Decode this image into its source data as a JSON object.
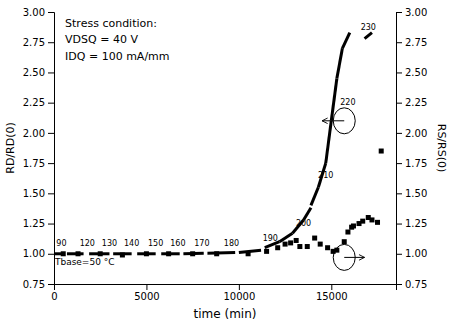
{
  "chart_data": {
    "type": "line",
    "xlabel": "time (min)",
    "ylabel": "RD/RD(0)",
    "y2label": "RS/RS(0)",
    "xlim": [
      0,
      18500
    ],
    "ylim": [
      0.75,
      3.0
    ],
    "y2lim": [
      0.75,
      3.0
    ],
    "xticks": [
      0,
      5000,
      10000,
      15000
    ],
    "yticks": [
      0.75,
      {
        "value": 1.0,
        "label": "1.00"
      },
      1.25,
      {
        "value": 1.5,
        "label": "1.50"
      },
      1.75,
      {
        "value": 2.0,
        "label": "2.00"
      },
      2.25,
      {
        "value": 2.5,
        "label": "2.50"
      },
      2.75,
      {
        "value": 3.0,
        "label": "3.00"
      }
    ],
    "y2ticks": [
      0.75,
      {
        "value": 1.0,
        "label": "1.00"
      },
      1.25,
      {
        "value": 1.5,
        "label": "1.50"
      },
      1.75,
      {
        "value": 2.0,
        "label": "2.00"
      },
      2.25,
      {
        "value": 2.5,
        "label": "2.50"
      },
      2.75,
      {
        "value": 3.0,
        "label": "3.00"
      }
    ],
    "grid": false,
    "series": [
      {
        "type": "line",
        "color": "#000000",
        "x": [
          0,
          450
        ],
        "values": [
          1.0,
          1.0
        ]
      },
      {
        "type": "line",
        "color": "#000000",
        "x": [
          700,
          1600
        ],
        "values": [
          1.0,
          1.0
        ]
      },
      {
        "type": "line",
        "color": "#000000",
        "x": [
          1900,
          3000
        ],
        "values": [
          1.0,
          1.0
        ]
      },
      {
        "type": "line",
        "color": "#000000",
        "x": [
          3200,
          4200
        ],
        "values": [
          1.0,
          1.0
        ]
      },
      {
        "type": "line",
        "color": "#000000",
        "x": [
          4500,
          5500
        ],
        "values": [
          1.0,
          1.0
        ]
      },
      {
        "type": "line",
        "color": "#000000",
        "x": [
          5800,
          6800
        ],
        "values": [
          1.0,
          1.0
        ]
      },
      {
        "type": "line",
        "color": "#000000",
        "x": [
          7000,
          8100
        ],
        "values": [
          1.0,
          1.005
        ]
      },
      {
        "type": "line",
        "color": "#000000",
        "x": [
          8300,
          9800
        ],
        "values": [
          1.005,
          1.01
        ]
      },
      {
        "type": "line",
        "color": "#000000",
        "x": [
          10000,
          11200
        ],
        "values": [
          1.01,
          1.03
        ]
      },
      {
        "type": "line",
        "color": "#000000",
        "x": [
          11400,
          12200
        ],
        "values": [
          1.05,
          1.1
        ]
      },
      {
        "type": "line",
        "color": "#000000",
        "x": [
          12200,
          12900
        ],
        "values": [
          1.1,
          1.17
        ]
      },
      {
        "type": "line",
        "color": "#000000",
        "x": [
          12900,
          13500
        ],
        "values": [
          1.17,
          1.28
        ]
      },
      {
        "type": "line",
        "color": "#000000",
        "x": [
          13500,
          13900
        ],
        "values": [
          1.28,
          1.38
        ]
      },
      {
        "type": "line",
        "color": "#000000",
        "x": [
          13900,
          14300
        ],
        "values": [
          1.4,
          1.55
        ]
      },
      {
        "type": "line",
        "color": "#000000",
        "x": [
          14300,
          14700
        ],
        "values": [
          1.55,
          1.75
        ]
      },
      {
        "type": "line",
        "color": "#000000",
        "x": [
          14700,
          15000
        ],
        "values": [
          1.75,
          2.1
        ]
      },
      {
        "type": "line",
        "color": "#000000",
        "x": [
          15000,
          15300
        ],
        "values": [
          2.1,
          2.45
        ]
      },
      {
        "type": "line",
        "color": "#000000",
        "x": [
          15300,
          15600
        ],
        "values": [
          2.45,
          2.7
        ]
      },
      {
        "type": "line",
        "color": "#000000",
        "x": [
          15600,
          16000
        ],
        "values": [
          2.7,
          2.83
        ]
      },
      {
        "type": "line",
        "color": "#000000",
        "x": [
          16800,
          17200
        ],
        "values": [
          2.78,
          2.83
        ]
      },
      {
        "type": "scatter",
        "axis": "y2",
        "color": "#000000",
        "marker": "square",
        "x": [
          500,
          1300,
          2500,
          3700,
          5000,
          6200,
          7500,
          8800,
          10500,
          11500,
          12100,
          12500,
          12800,
          13100,
          13300,
          13700,
          14100,
          14400,
          14800,
          15100,
          15300,
          15700,
          15900,
          16100,
          16200,
          16500,
          16700,
          17000,
          17200,
          17500,
          17700
        ],
        "values": [
          1.0,
          1.0,
          1.0,
          0.99,
          1.0,
          1.0,
          1.0,
          1.0,
          1.0,
          1.02,
          1.05,
          1.08,
          1.09,
          1.11,
          1.06,
          1.06,
          1.13,
          1.08,
          1.05,
          1.02,
          1.03,
          1.1,
          1.18,
          1.22,
          1.23,
          1.25,
          1.27,
          1.3,
          1.28,
          1.26,
          1.85
        ]
      }
    ],
    "annotations": [
      {
        "text": "90",
        "x": 400,
        "y": 1.055
      },
      {
        "text": "120",
        "x": 1800,
        "y": 1.055
      },
      {
        "text": "130",
        "x": 3000,
        "y": 1.055
      },
      {
        "text": "140",
        "x": 4200,
        "y": 1.055
      },
      {
        "text": "150",
        "x": 5500,
        "y": 1.055
      },
      {
        "text": "160",
        "x": 6700,
        "y": 1.055
      },
      {
        "text": "170",
        "x": 8000,
        "y": 1.055
      },
      {
        "text": "180",
        "x": 9600,
        "y": 1.06
      },
      {
        "text": "190",
        "x": 11700,
        "y": 1.1
      },
      {
        "text": "200",
        "x": 13500,
        "y": 1.22
      },
      {
        "text": "210",
        "x": 14700,
        "y": 1.62
      },
      {
        "text": "220",
        "x": 15900,
        "y": 2.22
      },
      {
        "text": "230",
        "x": 17000,
        "y": 2.84
      },
      {
        "text": "Tbase=50 °C",
        "x": 50,
        "y": 0.965,
        "align": "left"
      },
      {
        "text": [
          "Stress condition:",
          "VDSQ = 40 V",
          "IDQ = 100 mA/mm"
        ],
        "x": 600,
        "y": 2.95,
        "align": "left"
      },
      {
        "type": "arrow",
        "x": [
          15700,
          14500
        ],
        "y": [
          2.1,
          2.1
        ]
      },
      {
        "type": "arrow",
        "axis": "y2",
        "x": [
          15700,
          16800
        ],
        "y": [
          0.97,
          0.97
        ]
      }
    ]
  }
}
